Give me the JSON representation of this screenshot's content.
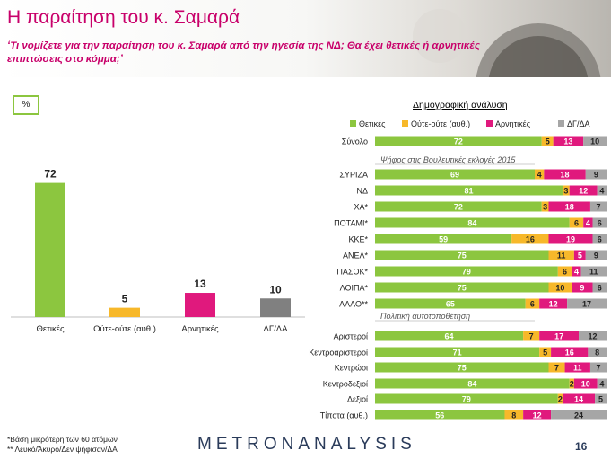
{
  "title": "Η παραίτηση του κ. Σαμαρά",
  "question": "‘Τι νομίζετε για την παραίτηση του κ. Σαμαρά από την ηγεσία της ΝΔ; Θα έχει θετικές ή αρνητικές επιπτώσεις στο κόμμα;’",
  "unit_box": "%",
  "demo_title": "Δημογραφική ανάλυση",
  "footnotes": [
    "*Βάση μικρότερη των 60 ατόμων",
    "** Λευκό/Άκυρο/Δεν ψήφισαν/ΔΑ"
  ],
  "brand": "METRONANALYSIS",
  "page_number": "16",
  "colors": {
    "positive": "#8cc63f",
    "neutral": "#f7b82a",
    "negative": "#e0197d",
    "dk": "#a6a6a6",
    "dk_main": "#808080",
    "accent": "#c8006a"
  },
  "chart_data": [
    {
      "type": "bar",
      "categories": [
        "Θετικές",
        "Ούτε-ούτε (αυθ.)",
        "Αρνητικές",
        "ΔΓ/ΔΑ"
      ],
      "values": [
        72,
        5,
        13,
        10
      ],
      "colors": [
        "#8cc63f",
        "#f7b82a",
        "#e0197d",
        "#808080"
      ],
      "title": "",
      "xlabel": "",
      "ylabel": "",
      "ylim": [
        0,
        80
      ]
    },
    {
      "type": "bar",
      "orientation": "horizontal",
      "stacked": true,
      "legend": [
        "Θετικές",
        "Ούτε-ούτε (αυθ.)",
        "Αρνητικές",
        "ΔΓ/ΔΑ"
      ],
      "legend_position": "top",
      "colors": [
        "#8cc63f",
        "#f7b82a",
        "#e0197d",
        "#a6a6a6"
      ],
      "xlim": [
        0,
        100
      ],
      "groups": [
        {
          "heading": "",
          "rows": [
            {
              "label": "Σύνολο",
              "values": [
                72,
                5,
                13,
                10
              ]
            }
          ]
        },
        {
          "heading": "Ψήφος στις Βουλευτικές εκλογές 2015",
          "rows": [
            {
              "label": "ΣΥΡΙΖΑ",
              "values": [
                69,
                4,
                18,
                9
              ]
            },
            {
              "label": "ΝΔ",
              "values": [
                81,
                3,
                12,
                4
              ]
            },
            {
              "label": "ΧΑ*",
              "values": [
                72,
                3,
                18,
                7
              ]
            },
            {
              "label": "ΠΟΤΑΜΙ*",
              "values": [
                84,
                6,
                4,
                6
              ]
            },
            {
              "label": "ΚΚΕ*",
              "values": [
                59,
                16,
                19,
                6
              ]
            },
            {
              "label": "ΑΝΕΛ*",
              "values": [
                75,
                11,
                5,
                9
              ]
            },
            {
              "label": "ΠΑΣΟΚ*",
              "values": [
                79,
                6,
                4,
                11
              ]
            },
            {
              "label": "ΛΟΙΠΑ*",
              "values": [
                75,
                10,
                9,
                6
              ]
            },
            {
              "label": "ΑΛΛΟ**",
              "values": [
                65,
                6,
                12,
                17
              ]
            }
          ]
        },
        {
          "heading": "Πολιτική αυτοτοποθέτηση",
          "rows": [
            {
              "label": "Αριστεροί",
              "values": [
                64,
                7,
                17,
                12
              ]
            },
            {
              "label": "Κεντροαριστεροί",
              "values": [
                71,
                5,
                16,
                8
              ]
            },
            {
              "label": "Κεντρώοι",
              "values": [
                75,
                7,
                11,
                7
              ]
            },
            {
              "label": "Κεντροδεξιοί",
              "values": [
                84,
                2,
                10,
                4
              ]
            },
            {
              "label": "Δεξιοί",
              "values": [
                79,
                2,
                14,
                5
              ]
            },
            {
              "label": "Τίποτα (αυθ.)",
              "values": [
                56,
                8,
                12,
                24
              ]
            }
          ]
        }
      ]
    }
  ]
}
